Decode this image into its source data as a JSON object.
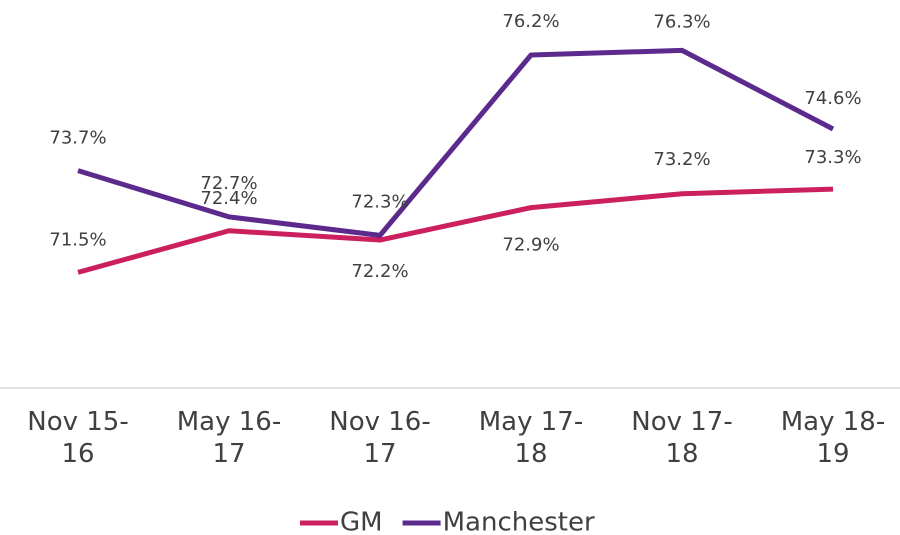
{
  "chart_data": {
    "type": "line",
    "categories": [
      "Nov 15-16",
      "May 16-17",
      "Nov 16-17",
      "May 17-18",
      "Nov 17-18",
      "May 18-19"
    ],
    "series": [
      {
        "name": "GM",
        "color": "#cc1f5e",
        "values": [
          71.5,
          72.4,
          72.2,
          72.9,
          73.2,
          73.3
        ],
        "value_labels": [
          "71.5%",
          "72.4%",
          "72.2%",
          "72.9%",
          "73.2%",
          "73.3%"
        ]
      },
      {
        "name": "Manchester",
        "color": "#5b2a8c",
        "values": [
          73.7,
          72.7,
          72.3,
          76.2,
          76.3,
          74.6
        ],
        "value_labels": [
          "73.7%",
          "72.7%",
          "72.3%",
          "76.2%",
          "76.3%",
          "74.6%"
        ]
      }
    ],
    "ylim": [
      69,
      77
    ],
    "legend": "bottom"
  }
}
